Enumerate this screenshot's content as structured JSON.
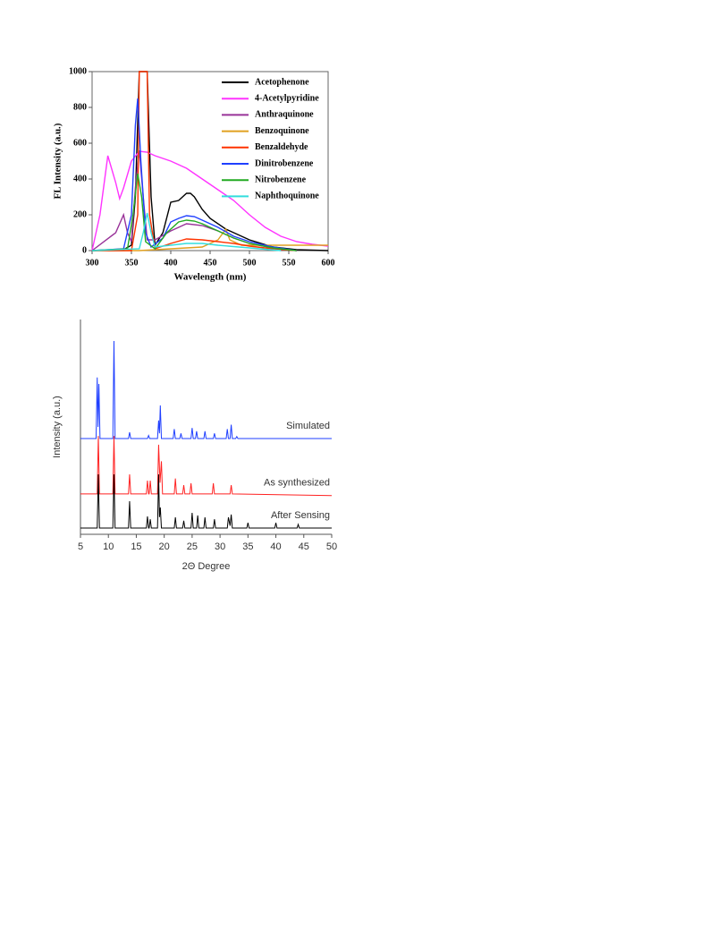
{
  "chart_data": [
    {
      "type": "line",
      "xlabel": "Wavelength (nm)",
      "ylabel": "FL Intensity (a.u.)",
      "xlim": [
        300,
        600
      ],
      "xticks": [
        300,
        350,
        400,
        450,
        500,
        550,
        600
      ],
      "ylim": [
        0,
        1000
      ],
      "yticks": [
        0,
        200,
        400,
        600,
        800,
        1000
      ],
      "frame": true,
      "legend": "upper right",
      "series": [
        {
          "name": "Acetophenone",
          "color": "#000000",
          "x": [
            300,
            340,
            350,
            355,
            360,
            370,
            375,
            380,
            390,
            400,
            410,
            420,
            425,
            430,
            440,
            450,
            470,
            500,
            530,
            560,
            600
          ],
          "values": [
            0,
            5,
            30,
            300,
            1000,
            1000,
            300,
            30,
            100,
            270,
            280,
            320,
            320,
            300,
            230,
            180,
            120,
            60,
            20,
            5,
            0
          ]
        },
        {
          "name": "4-Acetylpyridine",
          "color": "#ff33ff",
          "x": [
            300,
            310,
            320,
            330,
            335,
            340,
            350,
            360,
            370,
            380,
            400,
            420,
            440,
            460,
            480,
            500,
            520,
            540,
            560,
            580,
            600
          ],
          "values": [
            0,
            200,
            530,
            380,
            290,
            350,
            500,
            555,
            550,
            530,
            500,
            460,
            400,
            340,
            280,
            200,
            130,
            80,
            50,
            35,
            25
          ]
        },
        {
          "name": "Anthraquinone",
          "color": "#993399",
          "x": [
            300,
            330,
            340,
            345,
            350,
            355,
            360,
            365,
            370,
            380,
            400,
            420,
            440,
            460,
            480,
            500,
            530,
            560
          ],
          "values": [
            0,
            100,
            200,
            100,
            50,
            350,
            560,
            300,
            60,
            60,
            110,
            150,
            140,
            110,
            70,
            40,
            15,
            0
          ]
        },
        {
          "name": "Benzoquinone",
          "color": "#e0a020",
          "x": [
            300,
            360,
            440,
            460,
            470,
            475,
            490,
            520,
            560,
            600
          ],
          "values": [
            0,
            0,
            20,
            60,
            120,
            60,
            30,
            30,
            30,
            30
          ]
        },
        {
          "name": "Benzaldehyde",
          "color": "#ff3300",
          "x": [
            300,
            350,
            358,
            360,
            370,
            373,
            380,
            400,
            420,
            440,
            460,
            480,
            500,
            530,
            560
          ],
          "values": [
            0,
            0,
            200,
            1000,
            1000,
            200,
            10,
            40,
            65,
            60,
            50,
            40,
            25,
            10,
            0
          ]
        },
        {
          "name": "Dinitrobenzene",
          "color": "#1f3fff",
          "x": [
            300,
            340,
            350,
            355,
            358,
            362,
            368,
            375,
            390,
            400,
            410,
            420,
            430,
            440,
            460,
            480,
            500,
            530,
            560
          ],
          "values": [
            0,
            10,
            200,
            700,
            850,
            500,
            100,
            20,
            70,
            160,
            180,
            195,
            190,
            170,
            130,
            80,
            50,
            20,
            0
          ]
        },
        {
          "name": "Nitrobenzene",
          "color": "#22aa22",
          "x": [
            300,
            345,
            352,
            358,
            363,
            368,
            380,
            395,
            410,
            420,
            430,
            440,
            460,
            480,
            500,
            530,
            560
          ],
          "values": [
            0,
            10,
            200,
            430,
            300,
            50,
            10,
            100,
            160,
            170,
            165,
            150,
            110,
            70,
            40,
            15,
            0
          ]
        },
        {
          "name": "Naphthoquinone",
          "color": "#33dddd",
          "x": [
            300,
            360,
            365,
            370,
            375,
            380,
            400,
            420,
            440,
            460,
            500,
            540
          ],
          "values": [
            0,
            10,
            100,
            210,
            100,
            20,
            30,
            40,
            40,
            30,
            15,
            0
          ]
        }
      ]
    },
    {
      "type": "line",
      "xlabel": "2Θ Degree",
      "ylabel": "Intensity (a.u.)",
      "xlim": [
        5,
        50
      ],
      "xticks": [
        5,
        10,
        15,
        20,
        25,
        30,
        35,
        40,
        45,
        50
      ],
      "ylim": [
        0,
        100
      ],
      "frame": false,
      "legend": "trace labels",
      "series": [
        {
          "name": "Simulated",
          "color": "#1f3fff",
          "x": [
            5,
            7.8,
            8.0,
            8.15,
            8.3,
            8.5,
            10.8,
            11,
            11.2,
            13.6,
            13.8,
            14,
            17.0,
            17.2,
            17.4,
            18.8,
            19,
            19.15,
            19.3,
            19.5,
            21.6,
            21.8,
            22,
            22.8,
            23,
            23.2,
            24.8,
            25,
            25.2,
            25.6,
            25.8,
            26,
            27.1,
            27.3,
            27.5,
            28.8,
            29,
            29.2,
            31.1,
            31.3,
            31.5,
            31.8,
            32,
            32.2,
            32.8,
            33,
            33.2,
            50
          ],
          "values": [
            44.6,
            44.6,
            73,
            50,
            70,
            44.6,
            44.6,
            90,
            44.6,
            44.6,
            47.5,
            44.6,
            44.6,
            46,
            44.6,
            44.6,
            53,
            47,
            60,
            44.6,
            44.6,
            49,
            44.6,
            44.6,
            47,
            44.6,
            44.6,
            49.5,
            44.6,
            44.6,
            48,
            44.6,
            44.6,
            48,
            44.6,
            44.6,
            47,
            44.6,
            44.6,
            49,
            44.6,
            44.6,
            51,
            44.6,
            44.6,
            45.5,
            44.6,
            44.6
          ]
        },
        {
          "name": "As synthesized",
          "color": "#ff2222",
          "x": [
            5,
            8.0,
            8.2,
            8.4,
            10.8,
            11,
            11.2,
            13.6,
            13.8,
            14,
            16.8,
            17,
            17.2,
            17.3,
            17.5,
            17.7,
            18.8,
            19,
            19.25,
            19.5,
            19.7,
            21.8,
            22,
            22.2,
            23.3,
            23.5,
            23.7,
            24.6,
            24.8,
            25,
            28.6,
            28.8,
            29,
            31.8,
            32,
            32.2,
            50
          ],
          "values": [
            18.8,
            18.8,
            45.8,
            18.8,
            18.8,
            45.8,
            18.8,
            18.8,
            27.9,
            18.8,
            18.8,
            25,
            18.8,
            18.8,
            25,
            18.8,
            18.8,
            41.7,
            24,
            34,
            18.8,
            18.8,
            26,
            18.8,
            18.8,
            22.9,
            18.8,
            18.8,
            23.8,
            18.8,
            18.8,
            23.8,
            18.8,
            18.8,
            22.9,
            18.8,
            18
          ]
        },
        {
          "name": "After Sensing",
          "color": "#000000",
          "x": [
            5,
            8.0,
            8.2,
            8.4,
            10.8,
            11,
            11.2,
            13.6,
            13.8,
            14,
            16.8,
            17,
            17.2,
            17.3,
            17.5,
            17.7,
            18.8,
            19,
            19.15,
            19.3,
            19.5,
            21.8,
            22,
            22.2,
            23.3,
            23.5,
            23.7,
            24.8,
            25,
            25.2,
            25.8,
            26,
            26.2,
            27.1,
            27.3,
            27.5,
            28.8,
            29,
            29.2,
            31.3,
            31.5,
            31.8,
            32,
            32.2,
            34.8,
            35,
            35.2,
            39.8,
            40,
            40.2,
            43.8,
            44,
            44.2,
            50
          ],
          "values": [
            2.9,
            2.9,
            27.9,
            2.9,
            2.9,
            27.9,
            2.9,
            2.9,
            15.4,
            2.9,
            2.9,
            8.3,
            2.9,
            2.9,
            7,
            2.9,
            2.9,
            27.9,
            8,
            12.5,
            2.9,
            2.9,
            7.9,
            2.9,
            2.9,
            6.3,
            2.9,
            2.9,
            10,
            2.9,
            2.9,
            8.8,
            2.9,
            2.9,
            7.9,
            2.9,
            2.9,
            7,
            2.9,
            2.9,
            7.9,
            4,
            9.2,
            2.9,
            2.9,
            5.4,
            2.9,
            2.9,
            5.4,
            2.9,
            2.9,
            4.6,
            2.9,
            2.9
          ]
        }
      ]
    }
  ]
}
